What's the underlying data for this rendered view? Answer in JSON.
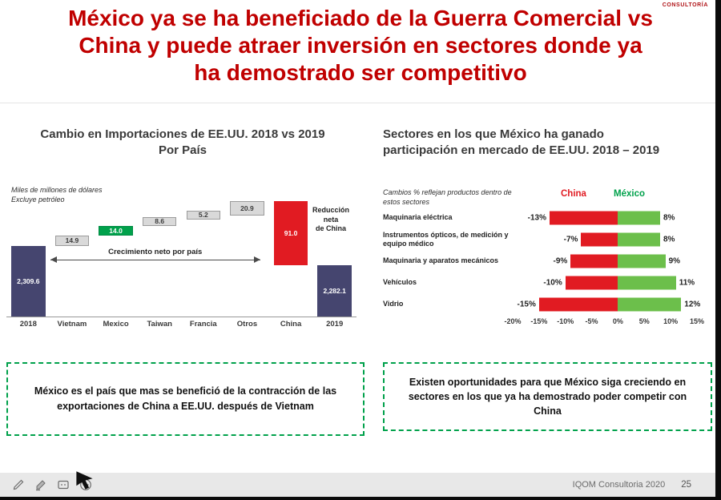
{
  "header": {
    "brand": "CONSULTORÍA"
  },
  "title": "México ya se ha beneficiado de la Guerra Comercial vs\nChina y puede atraer inversión en sectores donde ya\nha demostrado ser competitivo",
  "colors": {
    "title_red": "#C00000",
    "navy": "#45456F",
    "waterfall_green": "#00A14B",
    "waterfall_red": "#E11B22",
    "tornado_red": "#E11B22",
    "tornado_green": "#6CBF4B",
    "callout_border_green": "#00A14B"
  },
  "chart_data": [
    {
      "type": "bar",
      "subtype": "waterfall",
      "title": "Cambio en Importaciones de EE.UU. 2018 vs 2019\nPor País",
      "note": "Miles de millones de dólares\nExcluye petróleo",
      "categories": [
        "2018",
        "Vietnam",
        "Mexico",
        "Taiwan",
        "Francia",
        "Otros",
        "China",
        "2019"
      ],
      "items": [
        {
          "label": "2018",
          "kind": "total",
          "value": 2309.6,
          "display": "2,309.6",
          "color": "#45456F",
          "text_color": "#FFFFFF"
        },
        {
          "label": "Vietnam",
          "kind": "delta",
          "value": 14.9,
          "display": "14.9",
          "color": "#D9D9D9",
          "text_color": "#3B3B3B",
          "border": "#9B9B9B"
        },
        {
          "label": "Mexico",
          "kind": "delta",
          "value": 14.0,
          "display": "14.0",
          "color": "#00A14B",
          "text_color": "#FFFFFF",
          "border": "#008A43"
        },
        {
          "label": "Taiwan",
          "kind": "delta",
          "value": 8.6,
          "display": "8.6",
          "color": "#D9D9D9",
          "text_color": "#3B3B3B",
          "border": "#9B9B9B"
        },
        {
          "label": "Francia",
          "kind": "delta",
          "value": 5.2,
          "display": "5.2",
          "color": "#D9D9D9",
          "text_color": "#3B3B3B",
          "border": "#9B9B9B"
        },
        {
          "label": "Otros",
          "kind": "delta",
          "value": 20.9,
          "display": "20.9",
          "color": "#D9D9D9",
          "text_color": "#3B3B3B",
          "border": "#9B9B9B"
        },
        {
          "label": "China",
          "kind": "delta",
          "value": -91.0,
          "display": "91.0",
          "color": "#E11B22",
          "text_color": "#FFFFFF"
        },
        {
          "label": "2019",
          "kind": "total",
          "value": 2282.1,
          "display": "2,282.1",
          "color": "#45456F",
          "text_color": "#FFFFFF"
        }
      ],
      "annotations": {
        "arrow_label": "Crecimiento neto por país",
        "china_label": "Reducción neta\nde China"
      },
      "ylim": [
        2210,
        2380
      ],
      "legend_position": "none",
      "grid": false
    },
    {
      "type": "bar",
      "subtype": "diverging",
      "title": "Sectores en los que México ha ganado\nparticipación en mercado de EE.UU. 2018 – 2019",
      "note": "Cambios % reflejan productos dentro de estos sectores",
      "categories": [
        "Maquinaria eléctrica",
        "Instrumentos ópticos, de medición y equipo médico",
        "Maquinaria y aparatos mecánicos",
        "Vehículos",
        "Vidrio"
      ],
      "series": [
        {
          "name": "China",
          "color": "#E11B22",
          "values": [
            -13,
            -7,
            -9,
            -10,
            -15
          ],
          "labels": [
            "-13%",
            "-7%",
            "-9%",
            "-10%",
            "-15%"
          ]
        },
        {
          "name": "México",
          "color": "#6CBF4B",
          "values": [
            8,
            8,
            9,
            11,
            12
          ],
          "labels": [
            "8%",
            "8%",
            "9%",
            "11%",
            "12%"
          ]
        }
      ],
      "xticks": [
        "-20%",
        "-15%",
        "-10%",
        "-5%",
        "0%",
        "5%",
        "10%",
        "15%"
      ],
      "xlim": [
        -20,
        15
      ],
      "legend_position": "top",
      "grid": false
    }
  ],
  "callouts": {
    "left": "México es el país que mas se benefició de la contracción de las\nexportaciones de China a EE.UU. después de Vietnam",
    "right": "Existen oportunidades para que México siga creciendo en\nsectores en los que ya ha demostrado poder competir con\nChina"
  },
  "footer": {
    "credit": "IQOM Consultoria 2020",
    "page": "25",
    "icons": [
      "pen-icon",
      "highlighter-icon",
      "comment-icon",
      "more-options-icon",
      "cursor-arrow-icon"
    ]
  }
}
